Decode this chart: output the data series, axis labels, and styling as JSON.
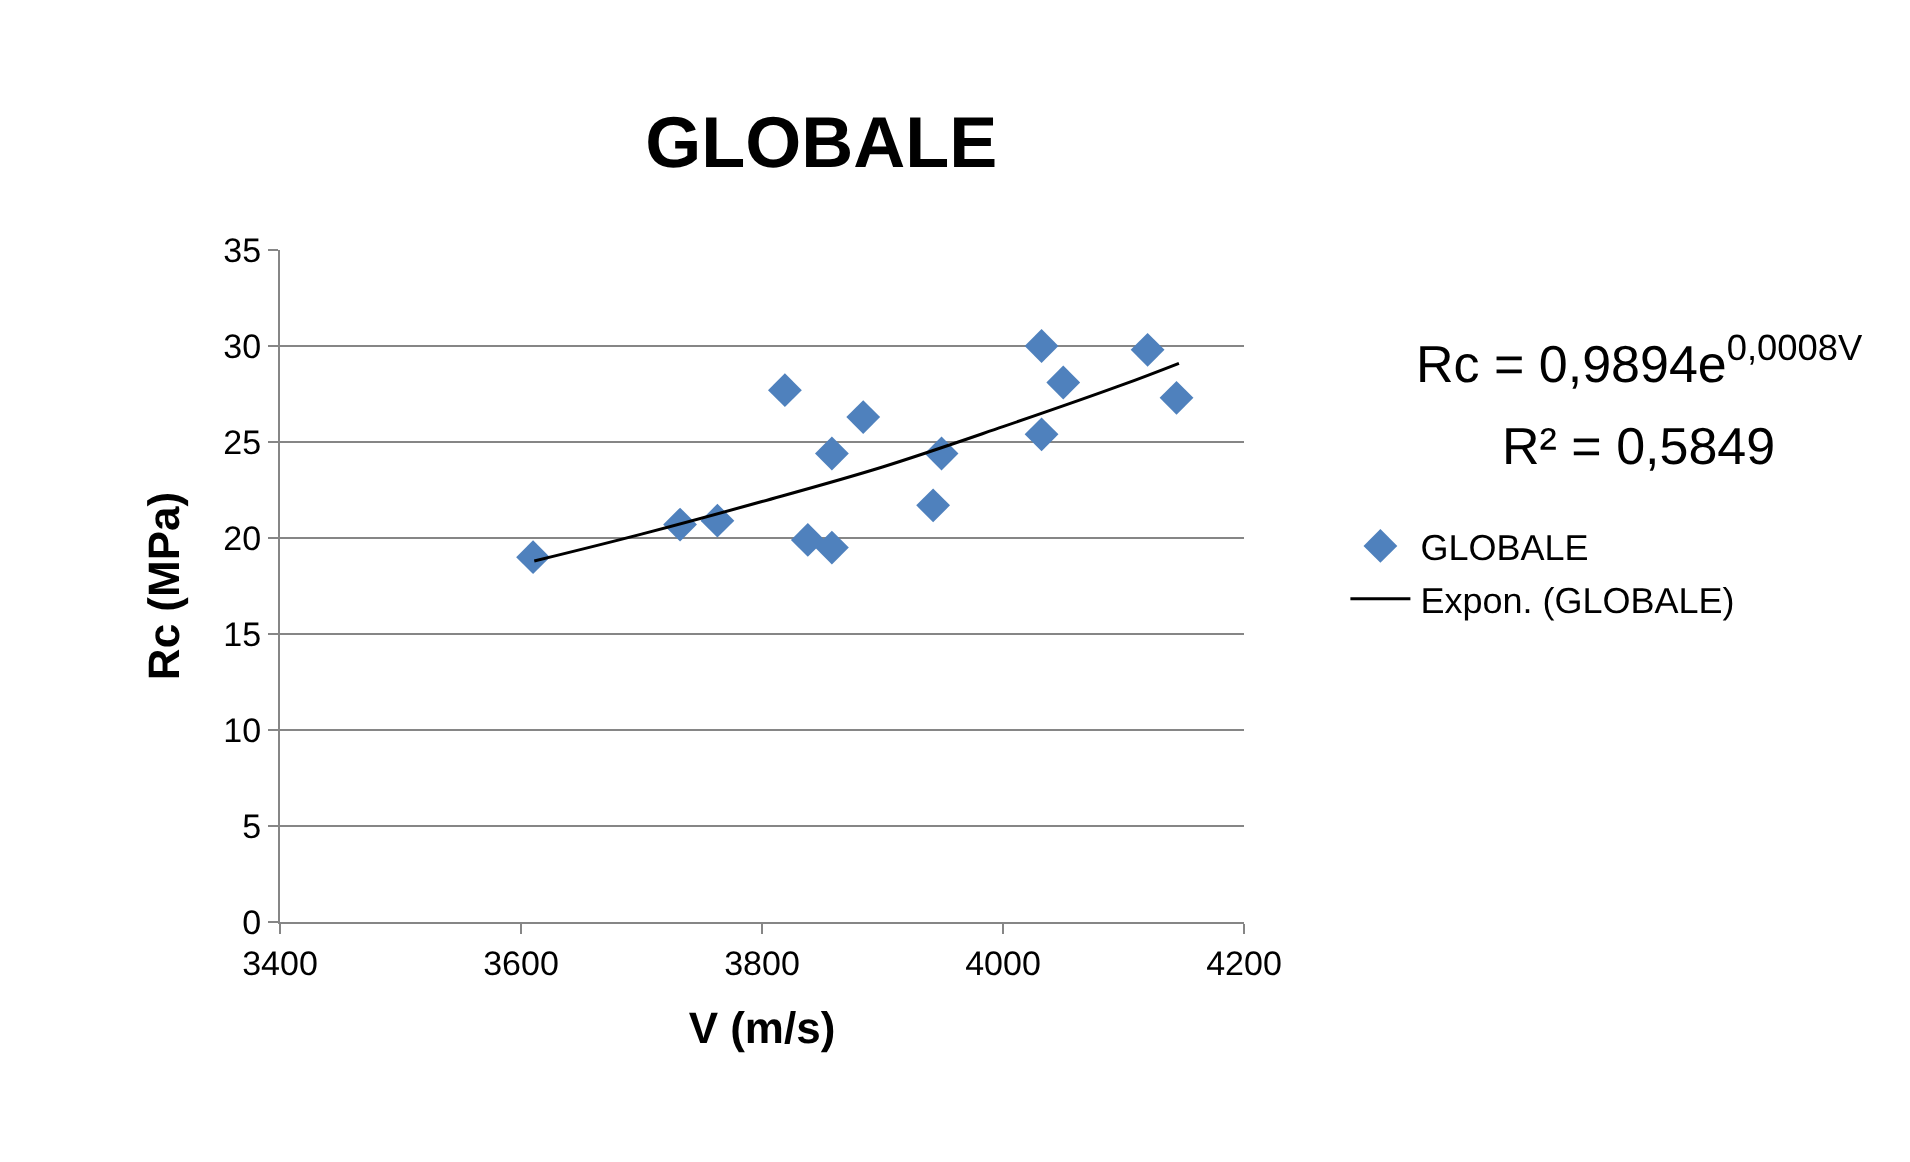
{
  "chart_data": {
    "type": "scatter",
    "title": "GLOBALE",
    "xlabel": "V (m/s)",
    "ylabel": "Rc (MPa)",
    "xlim": [
      3400,
      4200
    ],
    "xticks": [
      3400,
      3600,
      3800,
      4000,
      4200
    ],
    "ylim": [
      0,
      35
    ],
    "yticks": [
      0,
      5,
      10,
      15,
      20,
      25,
      30,
      35
    ],
    "grid": "y",
    "legend": "right",
    "marker": "diamond",
    "annotations": [
      "Rc = 0,9894e$^{0,0008V}$",
      "R² = 0,5849"
    ],
    "series": [
      {
        "name": "GLOBALE",
        "color": "#4f81bd",
        "x": [
          3610,
          3732,
          3763,
          3819,
          3838,
          3858,
          3858,
          3884,
          3942,
          3949,
          4032,
          4032,
          4050,
          4120,
          4144
        ],
        "values": [
          19.0,
          20.7,
          20.9,
          27.7,
          19.9,
          24.4,
          19.5,
          26.3,
          21.7,
          24.4,
          30.0,
          25.4,
          28.1,
          29.8,
          27.3
        ]
      },
      {
        "name": "Expon. (GLOBALE)",
        "type": "line",
        "color": "#000000",
        "line_style": "solid",
        "marker": "none",
        "x": [
          3611,
          3700,
          3800,
          3900,
          4000,
          4100,
          4146
        ],
        "values": [
          18.8,
          20.2,
          21.9,
          23.7,
          25.8,
          28.0,
          29.1
        ]
      }
    ]
  }
}
